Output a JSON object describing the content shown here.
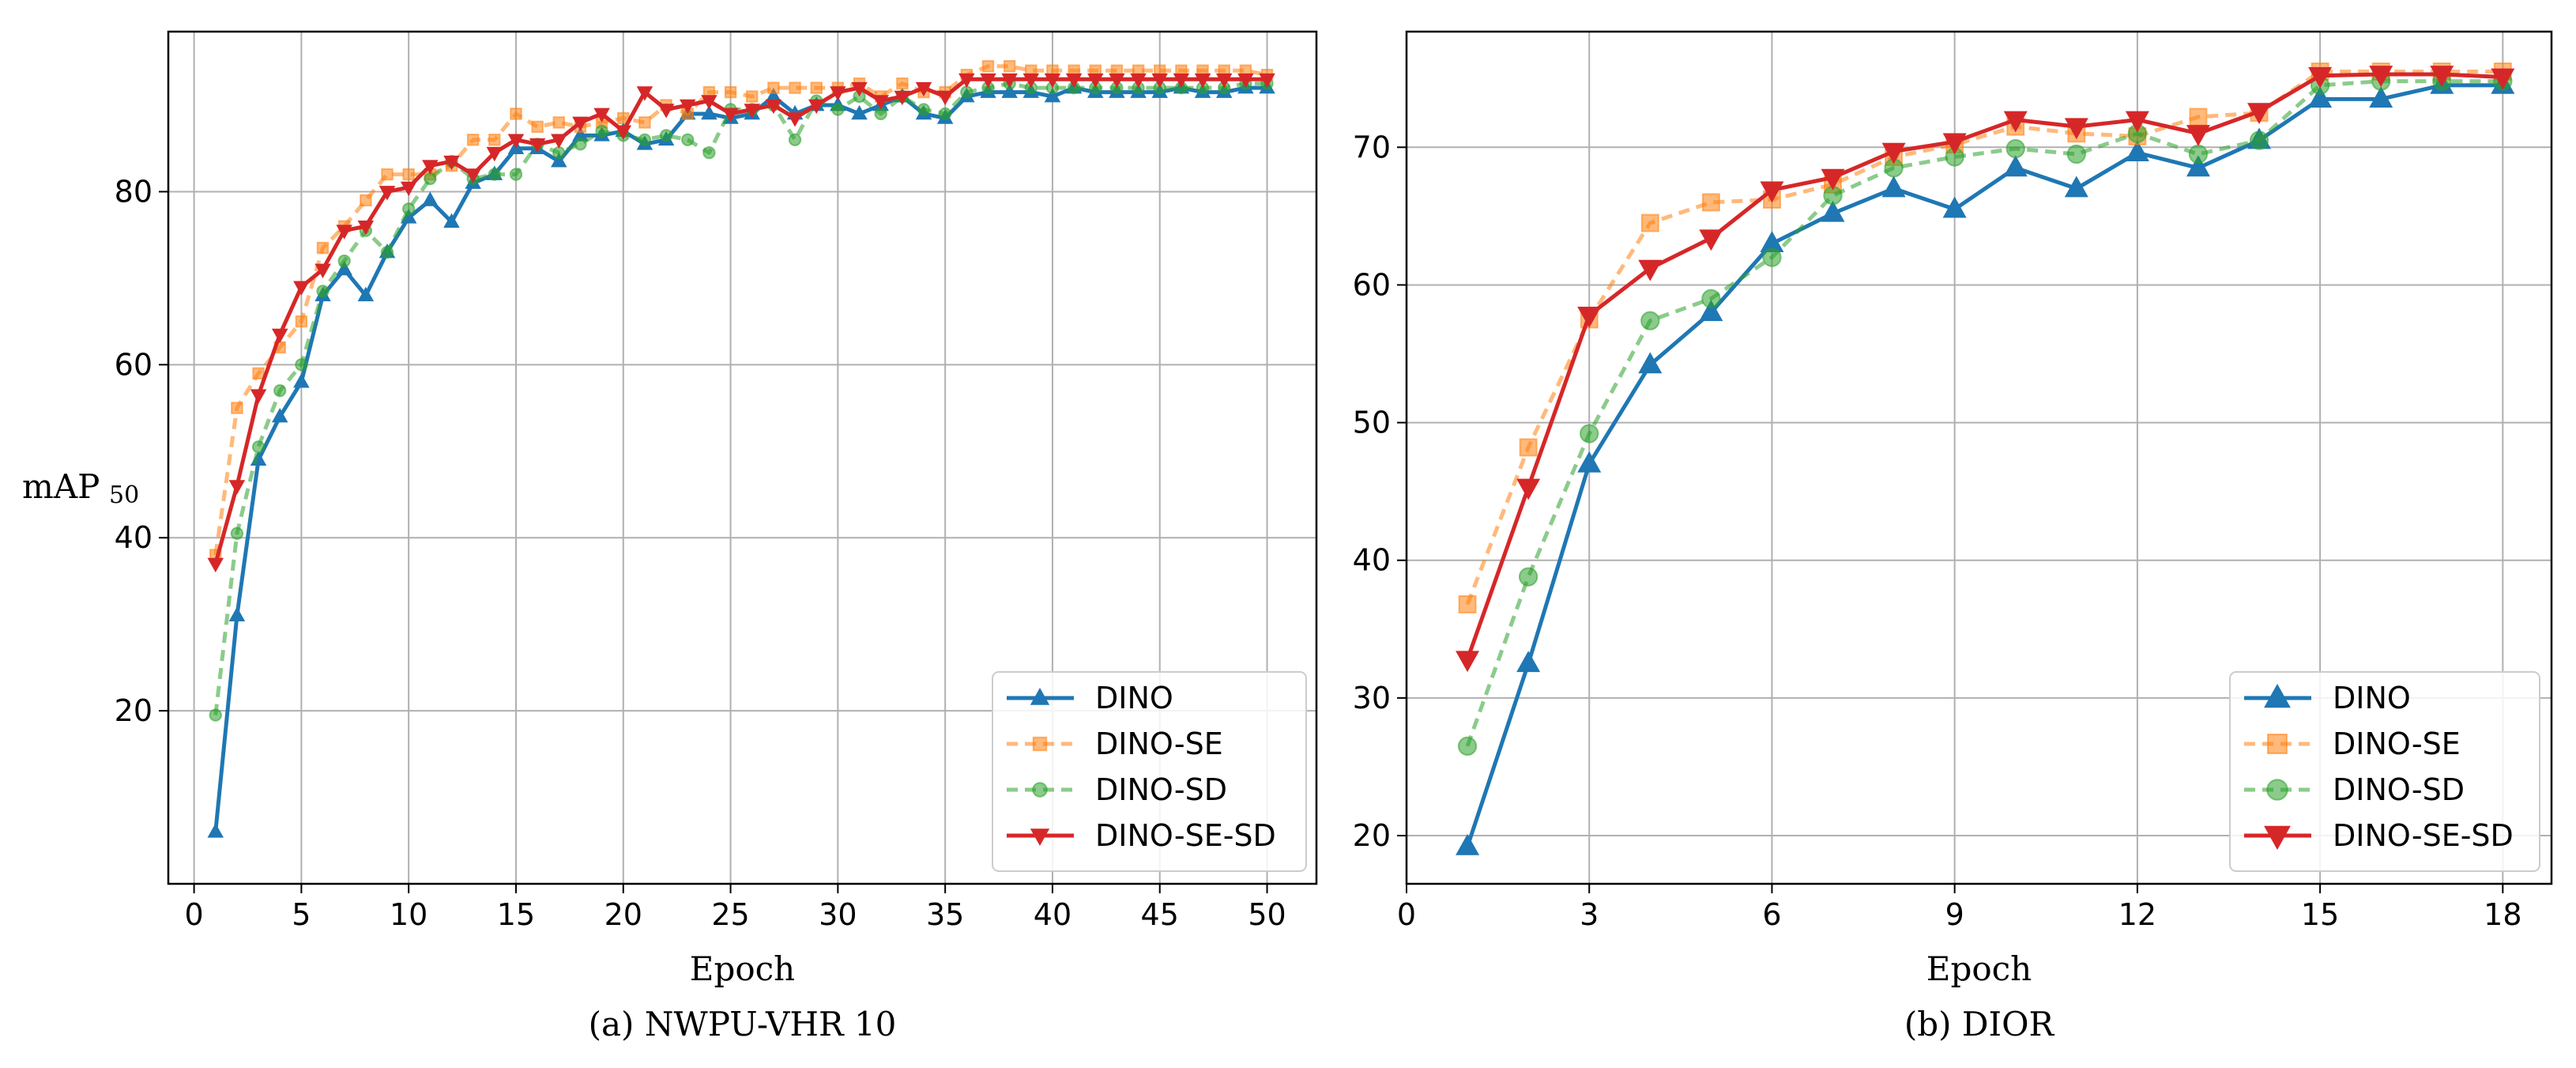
{
  "chart_data": [
    {
      "type": "line",
      "title": "",
      "caption": "(a)  NWPU-VHR 10",
      "xlabel": "Epoch",
      "ylabel": "mAP",
      "ylabel_sub": "50",
      "xlim": [
        -1.2,
        52.3
      ],
      "ylim": [
        0,
        98.5
      ],
      "xticks": [
        0,
        5,
        10,
        15,
        20,
        25,
        30,
        35,
        40,
        45,
        50
      ],
      "yticks": [
        20,
        40,
        60,
        80
      ],
      "grid": true,
      "legend": "bottom-right",
      "x": [
        1,
        2,
        3,
        4,
        5,
        6,
        7,
        8,
        9,
        10,
        11,
        12,
        13,
        14,
        15,
        16,
        17,
        18,
        19,
        20,
        21,
        22,
        23,
        24,
        25,
        26,
        27,
        28,
        29,
        30,
        31,
        32,
        33,
        34,
        35,
        36,
        37,
        38,
        39,
        40,
        41,
        42,
        43,
        44,
        45,
        46,
        47,
        48,
        49,
        50
      ],
      "series": [
        {
          "name": "DINO",
          "color": "#1f77b4",
          "dash": "",
          "marker": "triangle-up",
          "values": [
            6,
            31,
            49,
            54,
            58,
            68,
            71,
            68,
            73,
            77,
            79,
            76.5,
            81,
            82,
            85,
            85,
            83.5,
            86.5,
            86.5,
            87,
            85.5,
            86,
            89,
            89,
            88.5,
            89,
            91,
            89,
            90,
            90,
            89,
            90,
            91,
            89,
            88.5,
            91,
            91.5,
            91.5,
            91.5,
            91,
            92,
            91.5,
            91.5,
            91.5,
            91.5,
            92,
            91.5,
            91.5,
            92,
            92
          ]
        },
        {
          "name": "DINO-SE",
          "color": "#ff7f0e",
          "dash": "14,9",
          "marker": "square",
          "values": [
            38,
            55,
            59,
            62,
            65,
            73.5,
            76,
            79,
            82,
            82,
            82,
            83,
            86,
            86,
            89,
            87.5,
            88,
            87.5,
            88,
            88.5,
            88,
            90,
            89,
            91.5,
            91.5,
            91,
            92,
            92,
            92,
            92,
            92.5,
            91,
            92.5,
            91.5,
            91.5,
            93.5,
            94.5,
            94.5,
            94,
            94,
            94,
            94,
            94,
            94,
            94,
            94,
            94,
            94,
            94,
            93.5
          ]
        },
        {
          "name": "DINO-SD",
          "color": "#2ca02c",
          "dash": "14,9",
          "marker": "circle",
          "values": [
            19.5,
            40.5,
            50.5,
            57,
            60,
            68.5,
            72,
            75.5,
            73,
            78,
            81.5,
            83.5,
            81.5,
            82,
            82,
            85.5,
            84.5,
            85.5,
            87,
            86.5,
            86,
            86.5,
            86,
            84.5,
            89.5,
            89.5,
            90,
            86,
            90.5,
            89.5,
            91,
            89,
            91,
            89.5,
            89,
            91.5,
            92,
            92.5,
            92,
            92,
            92,
            92,
            92,
            92,
            92,
            92,
            92,
            92,
            92.5,
            92.5
          ]
        },
        {
          "name": "DINO-SE-SD",
          "color": "#d62728",
          "dash": "",
          "marker": "triangle-down",
          "values": [
            37,
            46,
            56.5,
            63.5,
            69,
            71,
            75.5,
            76,
            80,
            80.5,
            83,
            83.5,
            82,
            84.5,
            86,
            85.5,
            86,
            88,
            89,
            87,
            91.5,
            89.5,
            90,
            90.5,
            89,
            89.5,
            90,
            88.5,
            90,
            91.5,
            92,
            90.5,
            91,
            92,
            91,
            93,
            93,
            93,
            93,
            93,
            93,
            93,
            93,
            93,
            93,
            93,
            93,
            93,
            93,
            93
          ]
        }
      ]
    },
    {
      "type": "line",
      "title": "",
      "caption": "(b)  DIOR",
      "xlabel": "Epoch",
      "ylabel": "",
      "xlim": [
        0,
        18.8
      ],
      "ylim": [
        16.5,
        78.4
      ],
      "xticks": [
        0,
        3,
        6,
        9,
        12,
        15,
        18
      ],
      "yticks": [
        20,
        30,
        40,
        50,
        60,
        70
      ],
      "grid": true,
      "legend": "bottom-right",
      "x": [
        1,
        2,
        3,
        4,
        5,
        6,
        7,
        8,
        9,
        10,
        11,
        12,
        13,
        14,
        15,
        16,
        17,
        18
      ],
      "series": [
        {
          "name": "DINO",
          "color": "#1f77b4",
          "dash": "",
          "marker": "triangle-up",
          "values": [
            19.2,
            32.5,
            47,
            54.2,
            58,
            63,
            65.2,
            67,
            65.5,
            68.5,
            67,
            69.6,
            68.5,
            70.5,
            73.5,
            73.5,
            74.5,
            74.5
          ]
        },
        {
          "name": "DINO-SE",
          "color": "#ff7f0e",
          "dash": "14,9",
          "marker": "square",
          "values": [
            36.8,
            48.2,
            57.5,
            64.5,
            66,
            66.2,
            67.3,
            69.3,
            70.2,
            71.5,
            71,
            70.8,
            72.2,
            72.5,
            75.5,
            75.5,
            75.5,
            75.5
          ]
        },
        {
          "name": "DINO-SD",
          "color": "#2ca02c",
          "dash": "14,9",
          "marker": "circle",
          "values": [
            26.5,
            38.8,
            49.2,
            57.4,
            59,
            62,
            66.5,
            68.5,
            69.3,
            69.9,
            69.5,
            71,
            69.5,
            70.5,
            74.5,
            74.8,
            74.8,
            74.8
          ]
        },
        {
          "name": "DINO-SE-SD",
          "color": "#d62728",
          "dash": "",
          "marker": "triangle-down",
          "values": [
            32.8,
            45.3,
            57.8,
            61.2,
            63.4,
            66.9,
            67.8,
            69.7,
            70.4,
            72,
            71.5,
            72,
            71,
            72.6,
            75.2,
            75.3,
            75.3,
            75.1
          ]
        }
      ]
    }
  ]
}
